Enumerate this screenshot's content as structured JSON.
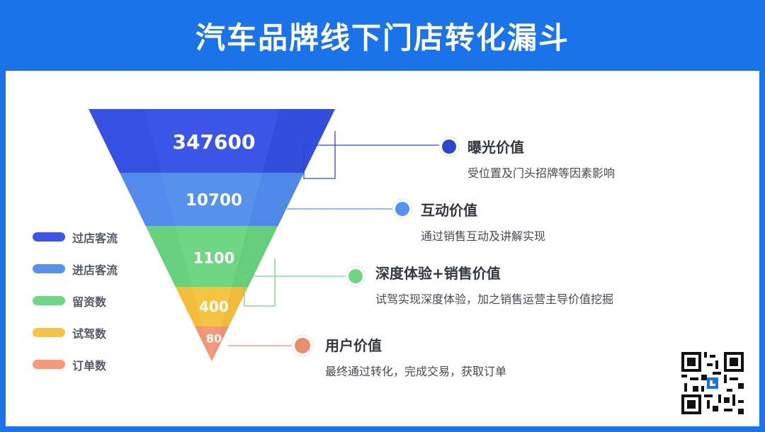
{
  "title": "汽车品牌线下门店转化漏斗",
  "chart_data": {
    "type": "funnel",
    "stages": [
      {
        "name": "过店客流",
        "value": 347600,
        "label": "347600",
        "color": "#3b55e6"
      },
      {
        "name": "进店客流",
        "value": 10700,
        "label": "10700",
        "color": "#5791ee"
      },
      {
        "name": "留资数",
        "value": 1100,
        "label": "1100",
        "color": "#6fd683"
      },
      {
        "name": "试驾数",
        "value": 400,
        "label": "400",
        "color": "#f5c443"
      },
      {
        "name": "订单数",
        "value": 80,
        "label": "80",
        "color": "#f39a7c"
      }
    ]
  },
  "callouts": [
    {
      "title": "曝光价值",
      "desc": "受位置及门头招牌等因素影响",
      "color": "#3b55e6"
    },
    {
      "title": "互动价值",
      "desc": "通过销售互动及讲解实现",
      "color": "#5791ee"
    },
    {
      "title": "深度体验+销售价值",
      "desc": "试驾实现深度体验，加之销售运营主导价值挖掘",
      "color": "#6fd683"
    },
    {
      "title": "用户价值",
      "desc": "最终通过转化，完成交易，获取订单",
      "color": "#e88e70"
    }
  ],
  "qr_icon": "qr-code-icon",
  "colors": {
    "header": "#1a73e8",
    "panel": "#ffffff"
  }
}
